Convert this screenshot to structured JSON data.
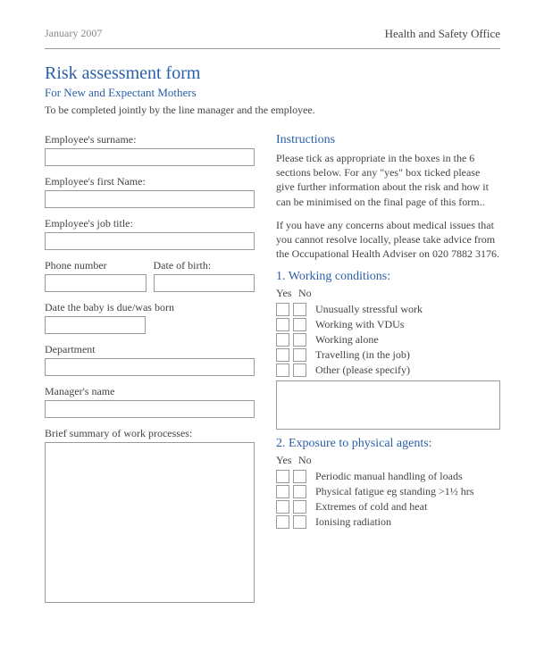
{
  "header": {
    "left": "January 2007",
    "right": "Health and Safety Office"
  },
  "title": "Risk assessment form",
  "subtitle": "For New and Expectant Mothers",
  "instruction_line": "To be completed jointly by the line manager and the employee.",
  "fields": {
    "surname": {
      "label": "Employee's surname:",
      "value": ""
    },
    "firstname": {
      "label": "Employee's first Name:",
      "value": ""
    },
    "jobtitle": {
      "label": "Employee's job title:",
      "value": ""
    },
    "phone": {
      "label": "Phone number",
      "value": ""
    },
    "dob": {
      "label": "Date of birth:",
      "value": ""
    },
    "duedate": {
      "label": "Date the baby is due/was born",
      "value": ""
    },
    "department": {
      "label": "Department",
      "value": ""
    },
    "manager": {
      "label": "Manager's name",
      "value": ""
    },
    "summary": {
      "label": "Brief summary of work processes:",
      "value": ""
    }
  },
  "instructions": {
    "heading": "Instructions",
    "para1": "Please tick as appropriate in the boxes in the 6 sections below.  For any \"yes\" box ticked please give further information about the risk and how it can be minimised on the final page of this form..",
    "para2": "If you have any concerns about medical issues that you cannot resolve locally, please take advice from the Occupational Health Adviser on 020 7882 3176."
  },
  "section1": {
    "heading": "1.  Working conditions:",
    "yes": "Yes",
    "no": "No",
    "items": [
      "Unusually stressful work",
      "Working with VDUs",
      "Working alone",
      "Travelling (in the job)",
      "Other (please specify)"
    ]
  },
  "section2": {
    "heading": "2.  Exposure to physical agents:",
    "yes": "Yes",
    "no": "No",
    "items": [
      "Periodic manual handling of loads",
      "Physical fatigue eg standing >1½ hrs",
      "Extremes of cold and heat",
      "Ionising radiation"
    ]
  },
  "colors": {
    "accent": "#2a5fa8",
    "text": "#444444",
    "muted": "#888888",
    "border": "#999999",
    "bg": "#ffffff"
  }
}
